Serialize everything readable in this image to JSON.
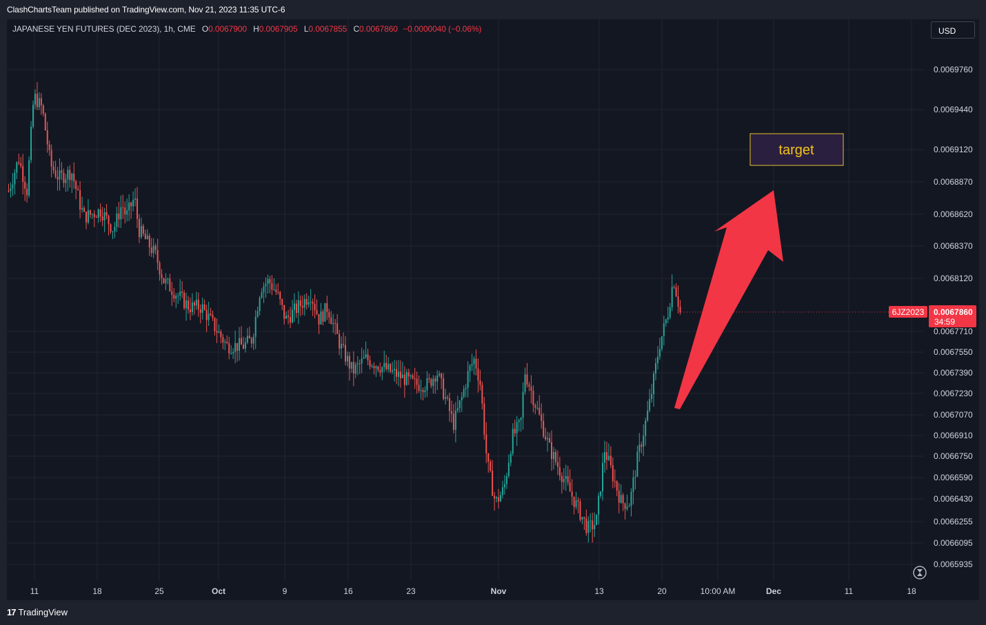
{
  "header": {
    "published": "ClashChartsTeam published on TradingView.com, Nov 21, 2023 11:35 UTC-6"
  },
  "legend": {
    "symbol": "JAPANESE YEN FUTURES (DEC 2023), 1h, CME",
    "open_label": "O",
    "open": "0.0067900",
    "high_label": "H",
    "high": "0.0067905",
    "low_label": "L",
    "low": "0.0067855",
    "close_label": "C",
    "close": "0.0067860",
    "change": "−0.0000040 (−0.06%)"
  },
  "currency_button": "USD",
  "price_tag": {
    "symbol": "6JZ2023",
    "price": "0.0067860",
    "countdown": "34:59"
  },
  "annotation": {
    "target_label": "target"
  },
  "footer": {
    "brand": "TradingView",
    "brand_mark": "17"
  },
  "icons": {
    "replay": "hourglass-icon",
    "arrow": "up-right-arrow-icon"
  },
  "colors": {
    "up": "#26a69a",
    "down": "#ef5350",
    "arrow": "#f23645",
    "target_border": "#e6c229",
    "target_bg": "#2a1f3f",
    "target_text": "#f5c518"
  },
  "chart_data": {
    "type": "candlestick",
    "instrument": "JAPANESE YEN FUTURES (DEC 2023)",
    "interval": "1h",
    "yticks": [
      "0.0069760",
      "0.0069440",
      "0.0069120",
      "0.0068870",
      "0.0068620",
      "0.0068370",
      "0.0068120",
      "0.0067710",
      "0.0067550",
      "0.0067390",
      "0.0067230",
      "0.0067070",
      "0.0066910",
      "0.0066750",
      "0.0066590",
      "0.0066430",
      "0.0066255",
      "0.0066095",
      "0.0065935"
    ],
    "xticks": [
      "11",
      "18",
      "25",
      "Oct",
      "9",
      "16",
      "23",
      "Nov",
      "13",
      "20",
      "10:00 AM",
      "Dec",
      "11",
      "18"
    ],
    "bold_xticks": [
      "Oct",
      "Nov",
      "Dec"
    ],
    "path": [
      [
        0,
        0.00688
      ],
      [
        0.012,
        0.006905
      ],
      [
        0.022,
        0.00688
      ],
      [
        0.03,
        0.006955
      ],
      [
        0.04,
        0.006945
      ],
      [
        0.05,
        0.0069
      ],
      [
        0.06,
        0.00689
      ],
      [
        0.075,
        0.006895
      ],
      [
        0.085,
        0.00687
      ],
      [
        0.09,
        0.00686
      ],
      [
        0.11,
        0.006865
      ],
      [
        0.125,
        0.00685
      ],
      [
        0.135,
        0.00687
      ],
      [
        0.14,
        0.00686
      ],
      [
        0.15,
        0.006875
      ],
      [
        0.155,
        0.00685
      ],
      [
        0.165,
        0.00684
      ],
      [
        0.175,
        0.00683
      ],
      [
        0.185,
        0.00681
      ],
      [
        0.2,
        0.0068
      ],
      [
        0.215,
        0.00679
      ],
      [
        0.23,
        0.00679
      ],
      [
        0.24,
        0.00678
      ],
      [
        0.26,
        0.00676
      ],
      [
        0.28,
        0.00676
      ],
      [
        0.29,
        0.006765
      ],
      [
        0.3,
        0.006805
      ],
      [
        0.31,
        0.00681
      ],
      [
        0.32,
        0.0068
      ],
      [
        0.33,
        0.00678
      ],
      [
        0.345,
        0.00679
      ],
      [
        0.36,
        0.0068
      ],
      [
        0.37,
        0.00678
      ],
      [
        0.38,
        0.00679
      ],
      [
        0.395,
        0.00676
      ],
      [
        0.41,
        0.00674
      ],
      [
        0.425,
        0.00675
      ],
      [
        0.44,
        0.006745
      ],
      [
        0.455,
        0.00674
      ],
      [
        0.47,
        0.006735
      ],
      [
        0.485,
        0.00673
      ],
      [
        0.5,
        0.00673
      ],
      [
        0.51,
        0.00674
      ],
      [
        0.52,
        0.00672
      ],
      [
        0.53,
        0.0067
      ],
      [
        0.54,
        0.00672
      ],
      [
        0.548,
        0.00674
      ],
      [
        0.555,
        0.00675
      ],
      [
        0.562,
        0.00673
      ],
      [
        0.57,
        0.00667
      ],
      [
        0.58,
        0.00664
      ],
      [
        0.59,
        0.00665
      ],
      [
        0.6,
        0.00669
      ],
      [
        0.61,
        0.0067
      ],
      [
        0.615,
        0.00674
      ],
      [
        0.625,
        0.00672
      ],
      [
        0.635,
        0.0067
      ],
      [
        0.645,
        0.00668
      ],
      [
        0.66,
        0.00666
      ],
      [
        0.675,
        0.00664
      ],
      [
        0.69,
        0.00662
      ],
      [
        0.7,
        0.006625
      ],
      [
        0.71,
        0.00668
      ],
      [
        0.72,
        0.00666
      ],
      [
        0.73,
        0.00664
      ],
      [
        0.74,
        0.00664
      ],
      [
        0.748,
        0.00667
      ],
      [
        0.755,
        0.00669
      ],
      [
        0.765,
        0.00672
      ],
      [
        0.775,
        0.00676
      ],
      [
        0.785,
        0.006784
      ],
      [
        0.792,
        0.006812
      ],
      [
        0.8,
        0.006786
      ]
    ],
    "last_price": 0.006786,
    "annotation_label": "target"
  }
}
